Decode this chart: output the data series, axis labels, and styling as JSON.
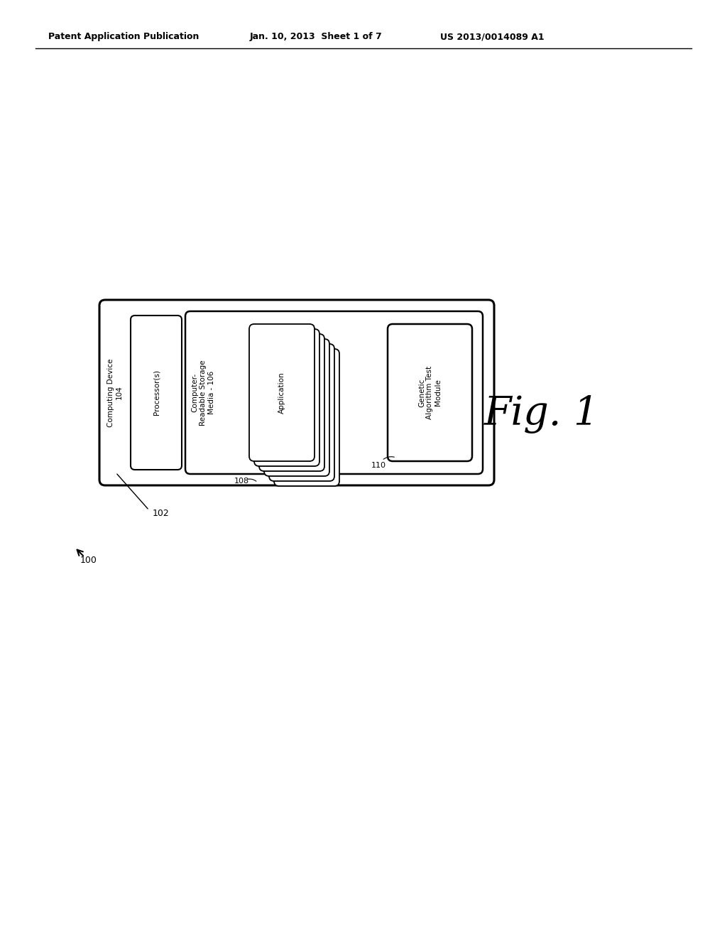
{
  "bg_color": "#ffffff",
  "header_left": "Patent Application Publication",
  "header_mid": "Jan. 10, 2013  Sheet 1 of 7",
  "header_right": "US 2013/0014089 A1",
  "fig_label": "Fig. 1",
  "label_100": "100",
  "label_102": "102",
  "computing_device_label": "Computing Device\n104",
  "processor_label": "Processor(s)",
  "crs_label": "Computer-\nReadable Storage\nMedia - 106",
  "app_label": "Application",
  "app_number": "108",
  "genetic_label": "Genetic\nAlgorithm Test\nModule",
  "genetic_number": "110"
}
